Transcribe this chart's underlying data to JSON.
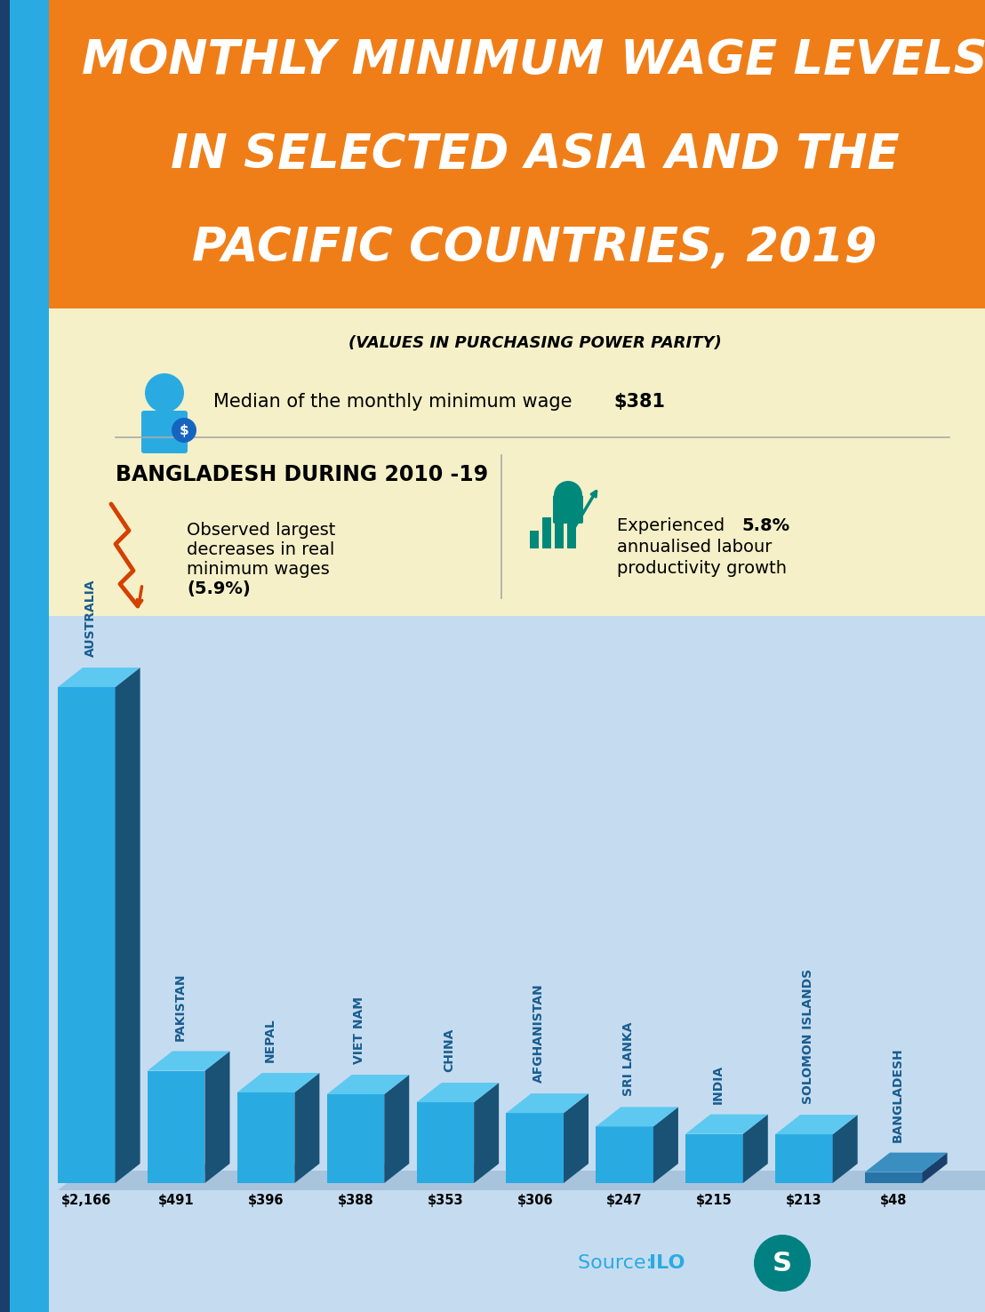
{
  "title_line1": "MONTHLY MINIMUM WAGE LEVELS",
  "title_line2": "IN SELECTED ASIA AND THE",
  "title_line3": "PACIFIC COUNTRIES, 2019",
  "subtitle": "(VALUES IN PURCHASING POWER PARITY)",
  "title_bg": "#F07E18",
  "content_bg": "#F5F0C8",
  "chart_bg_top": "#D8E8F5",
  "chart_bg_bottom": "#B8D0E8",
  "median_text": "Median of the monthly minimum wage ",
  "median_value": "$381",
  "bangladesh_header": "BANGLADESH DURING 2010 -19",
  "left_stat_text1": "Observed largest",
  "left_stat_text2": "decreases in real",
  "left_stat_text3": "minimum wages",
  "left_stat_text4": "(5.9%)",
  "right_stat_text1": "Experienced ",
  "right_stat_bold1": "5.8%",
  "right_stat_text2": "annualised labour",
  "right_stat_text3": "productivity growth",
  "countries": [
    "AUSTRALIA",
    "PAKISTAN",
    "NEPAL",
    "VIET NAM",
    "CHINA",
    "AFGHANISTAN",
    "SRI LANKA",
    "INDIA",
    "SOLOMON ISLANDS",
    "BANGLADESH"
  ],
  "values": [
    2166,
    491,
    396,
    388,
    353,
    306,
    247,
    215,
    213,
    48
  ],
  "labels": [
    "$2,166",
    "$491",
    "$396",
    "$388",
    "$353",
    "$306",
    "$247",
    "$215",
    "$213",
    "$48"
  ],
  "bar_face_color": "#29ABE2",
  "bar_side_color": "#1A5276",
  "bar_top_color": "#5DC8F0",
  "bangladesh_face": "#2874A6",
  "bangladesh_side": "#1A3F6B",
  "bangladesh_top": "#3A8FC0",
  "source_text_pre": "Source: ",
  "source_text_bold": "ILO",
  "source_color": "#29ABE2",
  "strip_color": "#29ABE2",
  "edge_color": "#1A3F6B",
  "floor_color": "#A8C4DC",
  "shadow_color": "#8BAFC8"
}
